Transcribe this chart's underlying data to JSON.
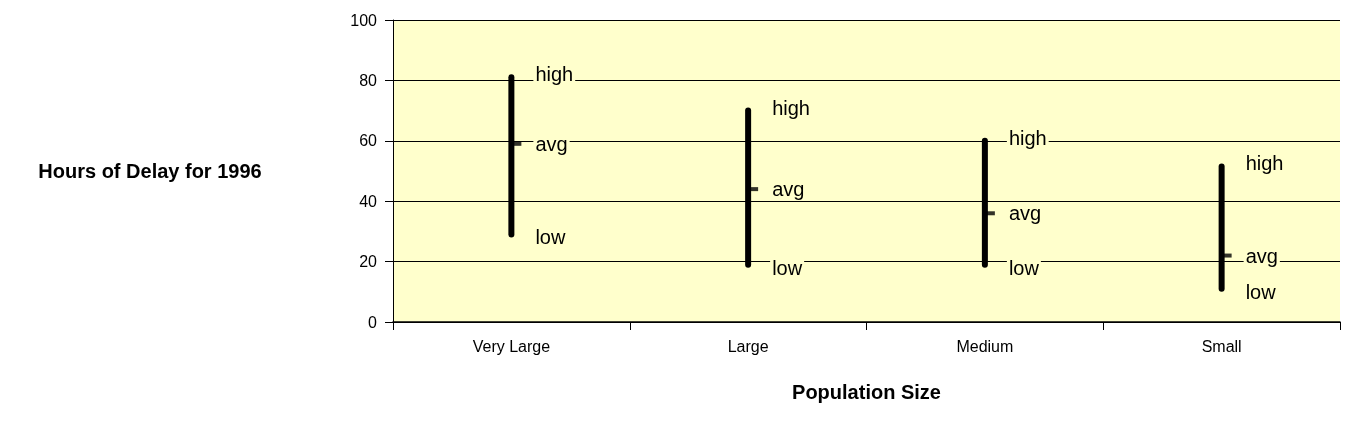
{
  "chart_data": {
    "type": "bar",
    "xlabel": "Population Size",
    "ylabel": "Hours of Delay for 1996",
    "categories": [
      "Very Large",
      "Large",
      "Medium",
      "Small"
    ],
    "series": [
      {
        "type": "bar",
        "color": "#000000",
        "base": [
          28,
          18,
          18,
          10
        ],
        "values": [
          54,
          53,
          43,
          42.5
        ]
      },
      {
        "type": "scatter",
        "color": "#000000",
        "x": [
          "Very Large",
          "Large",
          "Medium",
          "Small"
        ],
        "values": [
          59,
          44,
          36,
          22
        ]
      }
    ],
    "ylim": [
      0,
      100
    ],
    "yticks": [
      0,
      20,
      40,
      60,
      80,
      100
    ],
    "grid": "y",
    "annotations": [
      {
        "text": "high",
        "x": "Very Large",
        "y": 82
      },
      {
        "text": "avg",
        "x": "Very Large",
        "y": 59
      },
      {
        "text": "low",
        "x": "Very Large",
        "y": 28
      },
      {
        "text": "high",
        "x": "Large",
        "y": 71
      },
      {
        "text": "avg",
        "x": "Large",
        "y": 44
      },
      {
        "text": "low",
        "x": "Large",
        "y": 18
      },
      {
        "text": "high",
        "x": "Medium",
        "y": 61
      },
      {
        "text": "avg",
        "x": "Medium",
        "y": 36
      },
      {
        "text": "low",
        "x": "Medium",
        "y": 18
      },
      {
        "text": "high",
        "x": "Small",
        "y": 52.5
      },
      {
        "text": "avg",
        "x": "Small",
        "y": 22
      },
      {
        "text": "low",
        "x": "Small",
        "y": 10
      }
    ]
  }
}
